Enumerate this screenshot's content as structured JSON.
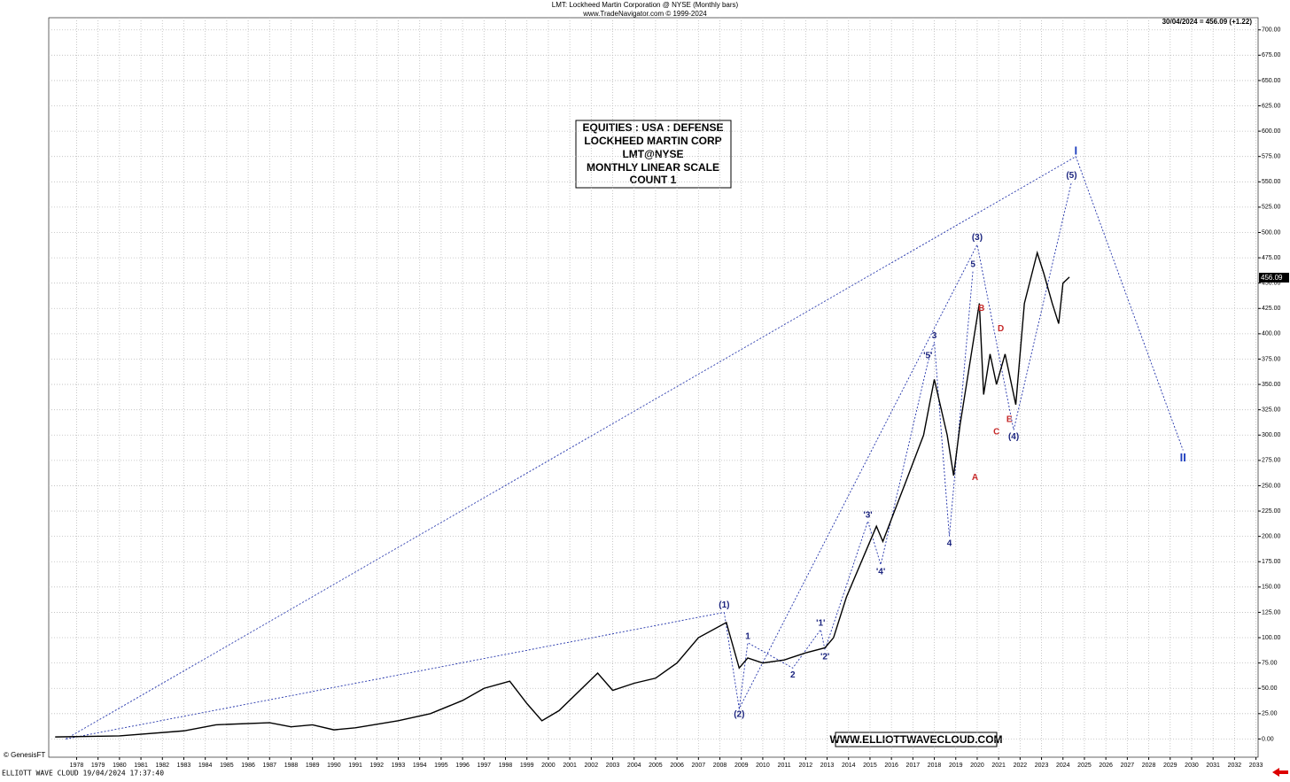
{
  "chart_data": {
    "type": "line",
    "title": "LMT:  Lockheed Martin Corporation @ NYSE  (Monthly bars)",
    "subtitle": "www.TradeNavigator.com © 1999-2024",
    "last_quote": "30/04/2024 = 456.09 (+1.22)",
    "price_tag": "456.09",
    "info_box": [
      "EQUITIES : USA : DEFENSE",
      "LOCKHEED MARTIN CORP",
      "LMT@NYSE",
      "MONTHLY LINEAR SCALE",
      "COUNT 1"
    ],
    "website": "WWW.ELLIOTTWAVECLOUD.COM",
    "copyright": "© GenesisFT",
    "footer": "ELLIOTT WAVE CLOUD   19/04/2024 17:37:40",
    "grid": true,
    "series": [
      {
        "name": "LMT",
        "color": "#000000",
        "x": [
          1977,
          1980,
          1983,
          1984.5,
          1987,
          1988,
          1989,
          1990,
          1991,
          1993,
          1994.5,
          1996,
          1997,
          1998.2,
          1999,
          1999.7,
          2000.5,
          2002.3,
          2003,
          2004,
          2005,
          2006,
          2007,
          2008.3,
          2008.9,
          2009.3,
          2010,
          2011,
          2012,
          2012.9,
          2013.3,
          2013.9,
          2014.9,
          2015.3,
          2015.6,
          2016.6,
          2017.5,
          2018.0,
          2018.6,
          2018.9,
          2019.2,
          2019.8,
          2020.1,
          2020.3,
          2020.6,
          2020.9,
          2021.3,
          2021.8,
          2022.2,
          2022.8,
          2023.1,
          2023.5,
          2023.8,
          2024.0,
          2024.3
        ],
        "values": [
          2,
          3,
          8,
          14,
          16,
          12,
          14,
          9,
          11,
          18,
          25,
          38,
          50,
          57,
          35,
          18,
          28,
          65,
          48,
          55,
          60,
          75,
          100,
          115,
          70,
          80,
          75,
          78,
          85,
          90,
          100,
          140,
          190,
          210,
          195,
          250,
          300,
          355,
          300,
          260,
          310,
          390,
          430,
          340,
          380,
          350,
          380,
          330,
          430,
          480,
          460,
          430,
          410,
          450,
          456
        ]
      }
    ],
    "wave_paths": [
      [
        [
          1977.5,
          0
        ],
        [
          2024.6,
          575
        ],
        [
          2029.6,
          285
        ]
      ],
      [
        [
          1977.5,
          0
        ],
        [
          2008.2,
          125
        ]
      ],
      [
        [
          2008.2,
          125
        ],
        [
          2008.9,
          30
        ],
        [
          2020.0,
          488
        ],
        [
          2021.7,
          305
        ],
        [
          2024.4,
          550
        ]
      ],
      [
        [
          2008.9,
          30
        ],
        [
          2009.3,
          95
        ],
        [
          2011.4,
          70
        ],
        [
          2012.7,
          108
        ],
        [
          2012.9,
          88
        ],
        [
          2014.9,
          215
        ],
        [
          2015.5,
          172
        ],
        [
          2017.7,
          372
        ],
        [
          2018.0,
          392
        ],
        [
          2018.7,
          200
        ],
        [
          2019.8,
          462
        ]
      ]
    ],
    "annotations": [
      {
        "label": "I",
        "x": 2024.6,
        "y": 580,
        "color": "#1f3fbf"
      },
      {
        "label": "II",
        "x": 2029.6,
        "y": 277,
        "color": "#1f3fbf"
      },
      {
        "label": "(1)",
        "x": 2008.2,
        "y": 132,
        "color": "#1a237e"
      },
      {
        "label": "(2)",
        "x": 2008.9,
        "y": 24,
        "color": "#1a237e"
      },
      {
        "label": "(3)",
        "x": 2020.0,
        "y": 495,
        "color": "#1a237e"
      },
      {
        "label": "(4)",
        "x": 2021.7,
        "y": 298,
        "color": "#1a237e"
      },
      {
        "label": "(5)",
        "x": 2024.4,
        "y": 556,
        "color": "#1a237e"
      },
      {
        "label": "1",
        "x": 2009.3,
        "y": 101,
        "color": "#1a237e"
      },
      {
        "label": "2",
        "x": 2011.4,
        "y": 63,
        "color": "#1a237e"
      },
      {
        "label": "'1'",
        "x": 2012.7,
        "y": 114,
        "color": "#1a237e"
      },
      {
        "label": "'2'",
        "x": 2012.9,
        "y": 81,
        "color": "#1a237e"
      },
      {
        "label": "'3'",
        "x": 2014.9,
        "y": 221,
        "color": "#1a237e"
      },
      {
        "label": "'4'",
        "x": 2015.5,
        "y": 165,
        "color": "#1a237e"
      },
      {
        "label": "'5'",
        "x": 2017.7,
        "y": 378,
        "color": "#1a237e"
      },
      {
        "label": "3",
        "x": 2018.0,
        "y": 398,
        "color": "#1a237e"
      },
      {
        "label": "4",
        "x": 2018.7,
        "y": 193,
        "color": "#1a237e"
      },
      {
        "label": "5",
        "x": 2019.8,
        "y": 468,
        "color": "#1a237e"
      },
      {
        "label": "A",
        "x": 2019.9,
        "y": 258,
        "color": "#c62828"
      },
      {
        "label": "B",
        "x": 2020.2,
        "y": 425,
        "color": "#c62828"
      },
      {
        "label": "C",
        "x": 2020.9,
        "y": 303,
        "color": "#c62828"
      },
      {
        "label": "D",
        "x": 2021.1,
        "y": 405,
        "color": "#c62828"
      },
      {
        "label": "E",
        "x": 2021.5,
        "y": 315,
        "color": "#c62828"
      }
    ],
    "xlim": [
      1976.7,
      2033.1
    ],
    "ylim": [
      -18,
      712
    ],
    "xticks": [
      1978,
      1979,
      1980,
      1981,
      1982,
      1983,
      1984,
      1985,
      1986,
      1987,
      1988,
      1989,
      1990,
      1991,
      1992,
      1993,
      1994,
      1995,
      1996,
      1997,
      1998,
      1999,
      2000,
      2001,
      2002,
      2003,
      2004,
      2005,
      2006,
      2007,
      2008,
      2009,
      2010,
      2011,
      2012,
      2013,
      2014,
      2015,
      2016,
      2017,
      2018,
      2019,
      2020,
      2021,
      2022,
      2023,
      2024,
      2025,
      2026,
      2027,
      2028,
      2029,
      2030,
      2031,
      2032,
      2033
    ],
    "yticks": [
      {
        "value": 0,
        "label": "0.00"
      },
      {
        "value": 25,
        "label": "25.00"
      },
      {
        "value": 50,
        "label": "50.00"
      },
      {
        "value": 75,
        "label": "75.00"
      },
      {
        "value": 100,
        "label": "100.00"
      },
      {
        "value": 125,
        "label": "125.00"
      },
      {
        "value": 150,
        "label": "150.00"
      },
      {
        "value": 175,
        "label": "175.00"
      },
      {
        "value": 200,
        "label": "200.00"
      },
      {
        "value": 225,
        "label": "225.00"
      },
      {
        "value": 250,
        "label": "250.00"
      },
      {
        "value": 275,
        "label": "275.00"
      },
      {
        "value": 300,
        "label": "300.00"
      },
      {
        "value": 325,
        "label": "325.00"
      },
      {
        "value": 350,
        "label": "350.00"
      },
      {
        "value": 375,
        "label": "375.00"
      },
      {
        "value": 400,
        "label": "400.00"
      },
      {
        "value": 425,
        "label": "425.00"
      },
      {
        "value": 450,
        "label": "450.00"
      },
      {
        "value": 475,
        "label": "475.00"
      },
      {
        "value": 500,
        "label": "500.00"
      },
      {
        "value": 525,
        "label": "525.00"
      },
      {
        "value": 550,
        "label": "550.00"
      },
      {
        "value": 575,
        "label": "575.00"
      },
      {
        "value": 600,
        "label": "600.00"
      },
      {
        "value": 625,
        "label": "625.00"
      },
      {
        "value": 650,
        "label": "650.00"
      },
      {
        "value": 675,
        "label": "675.00"
      },
      {
        "value": 700,
        "label": "700.00"
      }
    ]
  }
}
